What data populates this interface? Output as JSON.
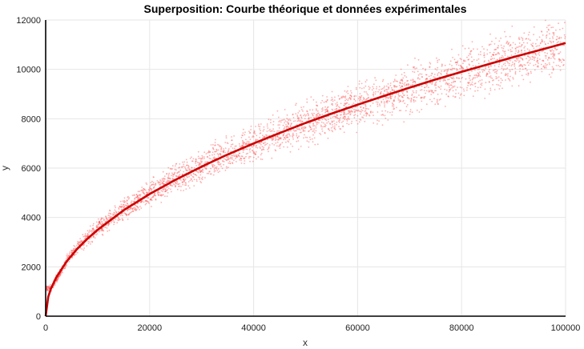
{
  "chart_data": {
    "type": "line",
    "title": "Superposition: Courbe théorique et données expérimentales",
    "xlabel": "x",
    "ylabel": "y",
    "xlim": [
      0,
      100000
    ],
    "ylim": [
      0,
      12000
    ],
    "x_ticks": [
      0,
      20000,
      40000,
      60000,
      80000,
      100000
    ],
    "y_ticks": [
      0,
      2000,
      4000,
      6000,
      8000,
      10000,
      12000
    ],
    "x_tick_labels": [
      "0",
      "20000",
      "40000",
      "60000",
      "80000",
      "100000"
    ],
    "y_tick_labels": [
      "0",
      "2000",
      "4000",
      "6000",
      "8000",
      "10000",
      "12000"
    ],
    "grid": true,
    "series": [
      {
        "kind": "line",
        "color": "#cc0000",
        "x": [
          0,
          500,
          1000,
          2000,
          4000,
          6000,
          8000,
          10000,
          15000,
          20000,
          25000,
          30000,
          35000,
          40000,
          45000,
          50000,
          55000,
          60000,
          65000,
          70000,
          75000,
          80000,
          85000,
          90000,
          95000,
          100000
        ],
        "y": [
          0,
          780,
          1110,
          1560,
          2210,
          2710,
          3130,
          3500,
          4290,
          4950,
          5530,
          6060,
          6550,
          7000,
          7420,
          7830,
          8210,
          8570,
          8920,
          9260,
          9590,
          9900,
          10200,
          10500,
          10780,
          11070
        ]
      },
      {
        "kind": "scatter",
        "color": "#ff4d4d",
        "x": [
          100000,
          90000,
          80000,
          70000,
          60000,
          50000,
          40000,
          30000,
          20000,
          10000,
          5000,
          1000
        ],
        "y_low": [
          9350,
          8900,
          8400,
          7850,
          7300,
          6650,
          5950,
          5150,
          4250,
          3050,
          2150,
          960
        ],
        "y_high": [
          12500,
          12050,
          11300,
          10550,
          9750,
          8950,
          8050,
          7000,
          5750,
          4100,
          2900,
          1300
        ]
      }
    ]
  }
}
